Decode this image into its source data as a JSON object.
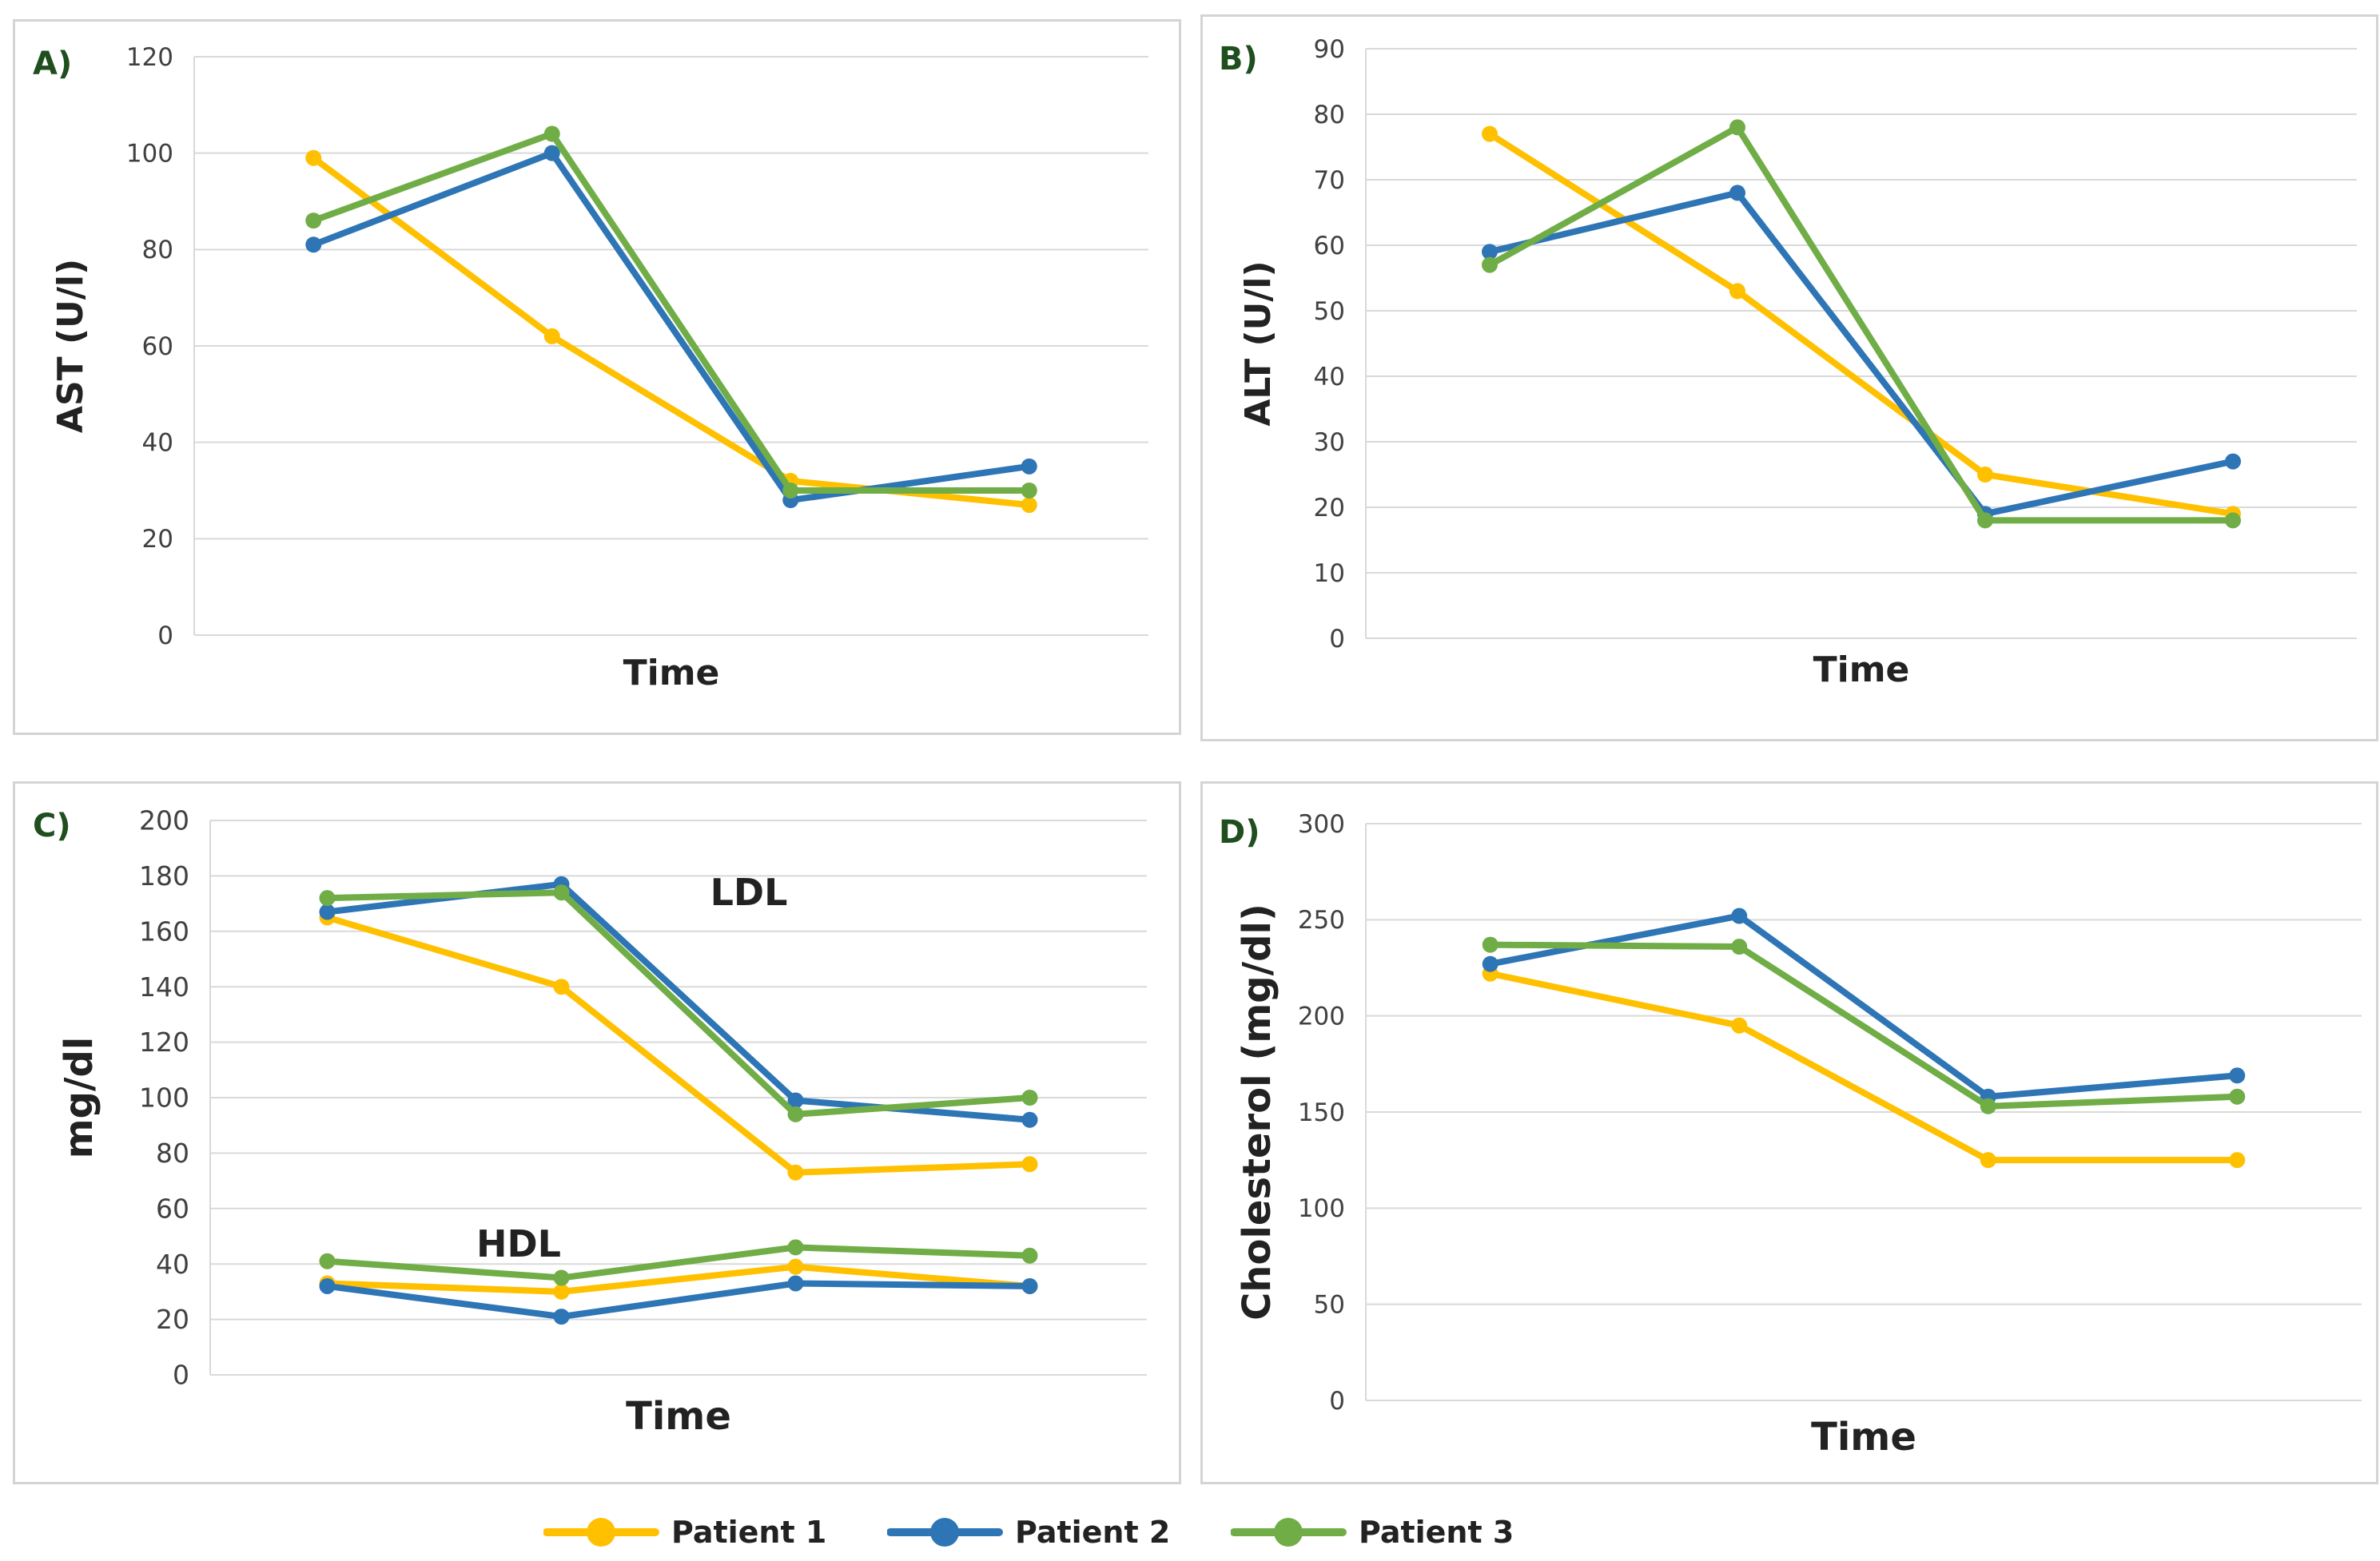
{
  "colors": {
    "patient1": "#ffc000",
    "patient2": "#2e75b6",
    "patient3": "#70ad47",
    "grid": "#d9d9d9",
    "panel_label": "#1f4e1f",
    "tick": "#404040"
  },
  "legend": {
    "items": [
      {
        "label": "Patient 1"
      },
      {
        "label": "Patient 2"
      },
      {
        "label": "Patient 3"
      }
    ]
  },
  "chart_data": [
    {
      "type": "line",
      "panel_label": "A)",
      "title": "",
      "xlabel": "Time",
      "ylabel": "AST (U/l)",
      "ylim": [
        0,
        120
      ],
      "yticks": [
        "0",
        "20",
        "40",
        "60",
        "80",
        "100",
        "120"
      ],
      "grid": true,
      "x": [
        1,
        2,
        3,
        4
      ],
      "series": [
        {
          "name": "Patient 1",
          "values": [
            99,
            62,
            32,
            27
          ]
        },
        {
          "name": "Patient 2",
          "values": [
            81,
            100,
            28,
            35
          ]
        },
        {
          "name": "Patient 3",
          "values": [
            86,
            104,
            30,
            30
          ]
        }
      ],
      "annotations": []
    },
    {
      "type": "line",
      "panel_label": "B)",
      "title": "",
      "xlabel": "Time",
      "ylabel": "ALT (U/l)",
      "ylim": [
        0,
        90
      ],
      "yticks": [
        "0",
        "10",
        "20",
        "30",
        "40",
        "50",
        "60",
        "70",
        "80",
        "90"
      ],
      "grid": true,
      "x": [
        1,
        2,
        3,
        4
      ],
      "series": [
        {
          "name": "Patient 1",
          "values": [
            77,
            53,
            25,
            19
          ]
        },
        {
          "name": "Patient 2",
          "values": [
            59,
            68,
            19,
            27
          ]
        },
        {
          "name": "Patient 3",
          "values": [
            57,
            78,
            18,
            18
          ]
        }
      ],
      "annotations": []
    },
    {
      "type": "line",
      "panel_label": "C)",
      "title": "",
      "xlabel": "Time",
      "ylabel": "mg/dl",
      "ylim": [
        0,
        200
      ],
      "yticks": [
        "0",
        "20",
        "40",
        "60",
        "80",
        "100",
        "120",
        "140",
        "160",
        "180",
        "200"
      ],
      "grid": true,
      "x": [
        1,
        2,
        3,
        4
      ],
      "series": [
        {
          "name": "Patient 1 LDL",
          "values": [
            165,
            140,
            73,
            76
          ]
        },
        {
          "name": "Patient 2 LDL",
          "values": [
            167,
            177,
            99,
            92
          ]
        },
        {
          "name": "Patient 3 LDL",
          "values": [
            172,
            174,
            94,
            100
          ]
        },
        {
          "name": "Patient 1 HDL",
          "values": [
            33,
            30,
            39,
            32
          ]
        },
        {
          "name": "Patient 2 HDL",
          "values": [
            32,
            21,
            33,
            32
          ]
        },
        {
          "name": "Patient 3 HDL",
          "values": [
            41,
            35,
            46,
            43
          ]
        }
      ],
      "annotations": [
        {
          "text": "LDL"
        },
        {
          "text": "HDL"
        }
      ]
    },
    {
      "type": "line",
      "panel_label": "D)",
      "title": "",
      "xlabel": "Time",
      "ylabel": "Cholesterol (mg/dl)",
      "ylim": [
        0,
        300
      ],
      "yticks": [
        "0",
        "50",
        "100",
        "150",
        "200",
        "250",
        "300"
      ],
      "grid": true,
      "x": [
        1,
        2,
        3,
        4
      ],
      "series": [
        {
          "name": "Patient 1",
          "values": [
            222,
            195,
            125,
            125
          ]
        },
        {
          "name": "Patient 2",
          "values": [
            227,
            252,
            158,
            169
          ]
        },
        {
          "name": "Patient 3",
          "values": [
            237,
            236,
            153,
            158
          ]
        }
      ],
      "annotations": []
    }
  ]
}
